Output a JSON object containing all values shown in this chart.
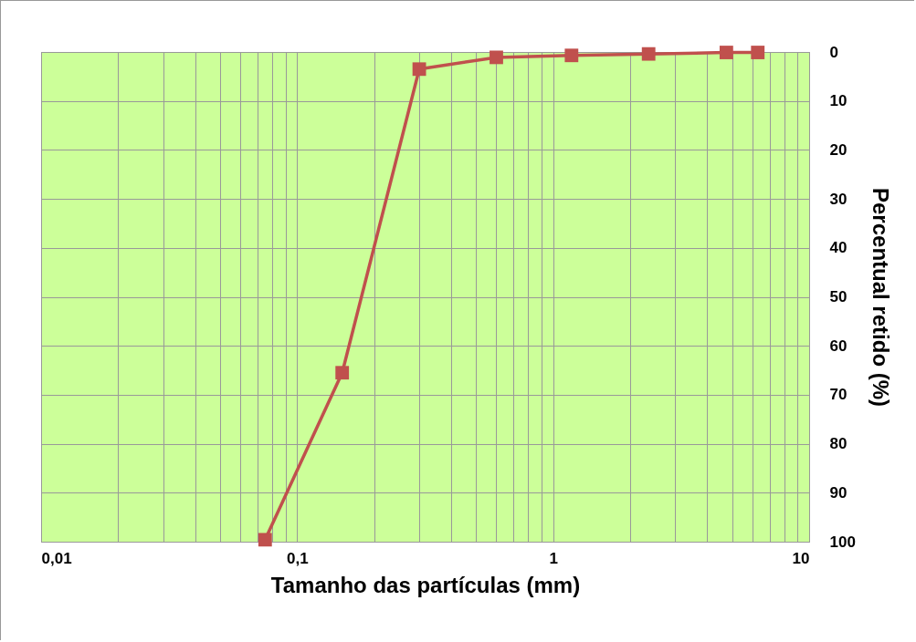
{
  "chart_data": {
    "type": "line",
    "xlabel": "Tamanho das partículas (mm)",
    "ylabel": "Percentual retido (%)",
    "x": [
      0.075,
      0.15,
      0.3,
      0.6,
      1.18,
      2.36,
      4.75,
      6.3
    ],
    "series": [
      {
        "color": "#c0504d",
        "values": [
          99.6,
          65.5,
          3.5,
          1.1,
          0.7,
          0.4,
          0.1,
          0.1
        ]
      }
    ],
    "log": "x",
    "marker": "square",
    "grid": true,
    "legend": false,
    "xlim": [
      0.01,
      10
    ],
    "xticks": [
      {
        "value": 0.01,
        "label": "0,01"
      },
      {
        "value": 0.02,
        "label": null
      },
      {
        "value": 0.03,
        "label": null
      },
      {
        "value": 0.04,
        "label": null
      },
      {
        "value": 0.05,
        "label": null
      },
      {
        "value": 0.06,
        "label": null
      },
      {
        "value": 0.07,
        "label": null
      },
      {
        "value": 0.08,
        "label": null
      },
      {
        "value": 0.09,
        "label": null
      },
      {
        "value": 0.1,
        "label": "0,1"
      },
      {
        "value": 0.2,
        "label": null
      },
      {
        "value": 0.3,
        "label": null
      },
      {
        "value": 0.4,
        "label": null
      },
      {
        "value": 0.5,
        "label": null
      },
      {
        "value": 0.6,
        "label": null
      },
      {
        "value": 0.7,
        "label": null
      },
      {
        "value": 0.8,
        "label": null
      },
      {
        "value": 0.9,
        "label": null
      },
      1,
      {
        "value": 2,
        "label": null
      },
      {
        "value": 3,
        "label": null
      },
      {
        "value": 4,
        "label": null
      },
      {
        "value": 5,
        "label": null
      },
      {
        "value": 6,
        "label": null
      },
      {
        "value": 7,
        "label": null
      },
      {
        "value": 8,
        "label": null
      },
      {
        "value": 9,
        "label": null
      },
      10
    ],
    "ylim": [
      100,
      0
    ],
    "yticks": [
      0,
      10,
      20,
      30,
      40,
      50,
      60,
      70,
      80,
      90,
      100
    ]
  }
}
